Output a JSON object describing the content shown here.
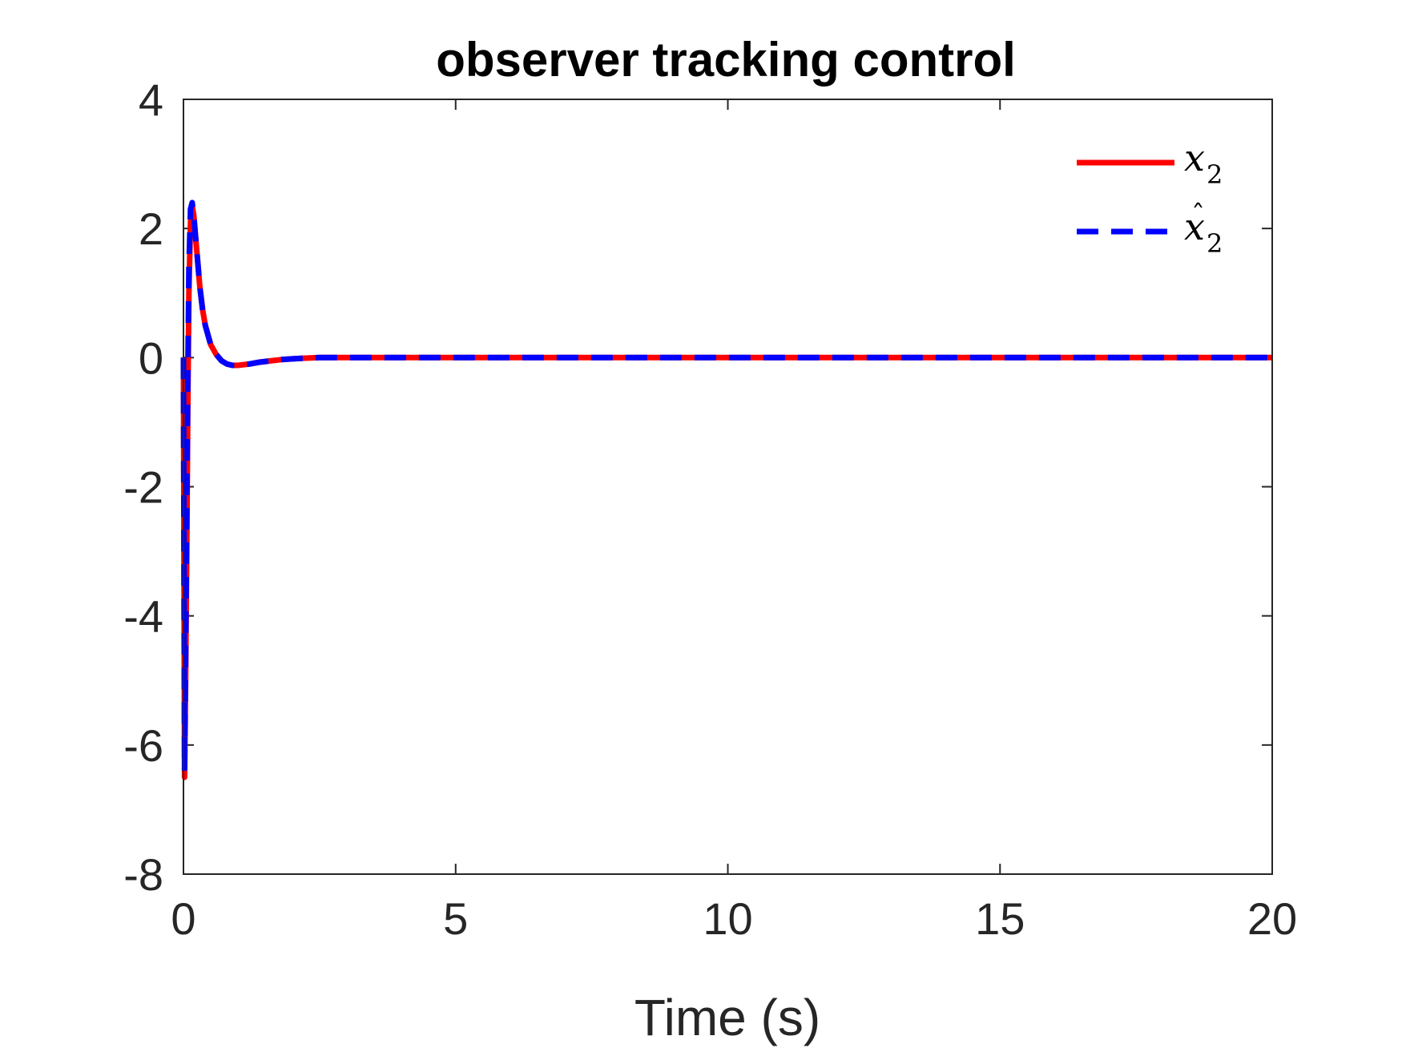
{
  "chart_data": {
    "type": "line",
    "title": "observer tracking control",
    "xlabel": "Time (s)",
    "ylabel": "",
    "xlim": [
      0,
      20
    ],
    "ylim": [
      -8,
      4
    ],
    "xticks": [
      "0",
      "5",
      "10",
      "15",
      "20"
    ],
    "yticks": [
      "4",
      "2",
      "0",
      "-2",
      "-4",
      "-6",
      "-8"
    ],
    "grid": false,
    "legend_position": "top-right",
    "series": [
      {
        "name": "x_2",
        "legend_main": "x",
        "legend_sub": "2",
        "color": "#ff0000",
        "style": "solid",
        "x": [
          0,
          0.02,
          0.04,
          0.06,
          0.08,
          0.1,
          0.13,
          0.16,
          0.19,
          0.22,
          0.25,
          0.3,
          0.35,
          0.4,
          0.5,
          0.6,
          0.7,
          0.8,
          0.9,
          1.0,
          1.2,
          1.4,
          1.6,
          1.8,
          2.0,
          2.2,
          2.5,
          3.0,
          3.5,
          4.0,
          6.0,
          8.0,
          10.0,
          12.0,
          14.0,
          16.0,
          18.0,
          20.0
        ],
        "y": [
          0,
          -6.5,
          -5.0,
          -3.0,
          -0.8,
          1.0,
          2.1,
          2.35,
          2.2,
          1.9,
          1.6,
          1.1,
          0.75,
          0.5,
          0.2,
          0.05,
          -0.05,
          -0.1,
          -0.12,
          -0.12,
          -0.1,
          -0.07,
          -0.05,
          -0.03,
          -0.02,
          -0.01,
          0,
          0,
          0,
          0,
          0,
          0,
          0,
          0,
          0,
          0,
          0,
          0
        ]
      },
      {
        "name": "x̂_2",
        "legend_main": "x",
        "legend_sub": "2",
        "color": "#0000ff",
        "style": "dashed",
        "x": [
          0,
          0.02,
          0.04,
          0.06,
          0.08,
          0.1,
          0.13,
          0.16,
          0.19,
          0.22,
          0.25,
          0.3,
          0.35,
          0.4,
          0.5,
          0.6,
          0.7,
          0.8,
          0.9,
          1.0,
          1.2,
          1.4,
          1.6,
          1.8,
          2.0,
          2.2,
          2.5,
          3.0,
          3.5,
          4.0,
          6.0,
          8.0,
          10.0,
          12.0,
          14.0,
          16.0,
          18.0,
          20.0
        ],
        "y": [
          0,
          -6.4,
          -4.6,
          -2.5,
          -0.3,
          1.4,
          2.3,
          2.4,
          2.2,
          1.9,
          1.6,
          1.1,
          0.75,
          0.5,
          0.2,
          0.05,
          -0.05,
          -0.1,
          -0.12,
          -0.12,
          -0.1,
          -0.07,
          -0.05,
          -0.03,
          -0.02,
          -0.01,
          0,
          0,
          0,
          0,
          0,
          0,
          0,
          0,
          0,
          0,
          0,
          0
        ]
      }
    ]
  }
}
